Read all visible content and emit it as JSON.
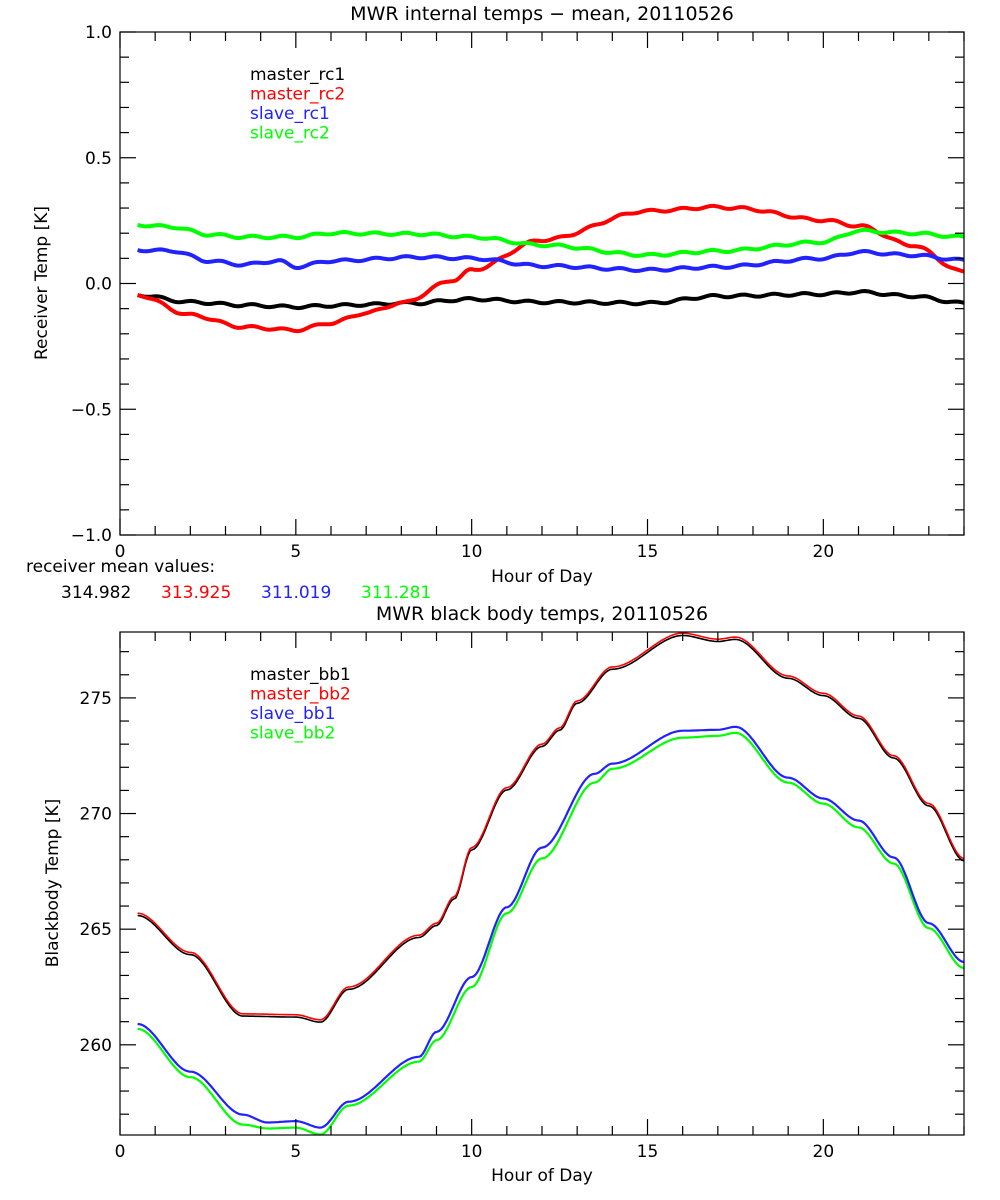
{
  "chart_data": [
    {
      "type": "line",
      "title": "MWR internal temps − mean, 20110526",
      "xlabel": "Hour of Day",
      "ylabel": "Receiver Temp [K]",
      "xlim": [
        0,
        24
      ],
      "ylim": [
        -1.0,
        1.0
      ],
      "xticks": [
        0,
        5,
        10,
        15,
        20
      ],
      "xtick_labels": [
        "0",
        "5",
        "10",
        "15",
        "20"
      ],
      "yticks": [
        -1.0,
        -0.5,
        0.0,
        0.5,
        1.0
      ],
      "ytick_labels": [
        "−1.0",
        "−0.5",
        "0.0",
        "0.5",
        "1.0"
      ],
      "grid": false,
      "legend_position": "top-left",
      "series": [
        {
          "name": "master_rc1",
          "color": "#000000",
          "x": [
            0.5,
            2,
            3.5,
            5,
            6,
            7,
            8,
            8.5,
            9.5,
            10,
            12,
            15,
            17,
            20,
            21,
            22.5,
            24
          ],
          "y": [
            -0.046,
            -0.074,
            -0.086,
            -0.093,
            -0.088,
            -0.084,
            -0.078,
            -0.078,
            -0.066,
            -0.062,
            -0.074,
            -0.078,
            -0.05,
            -0.042,
            -0.034,
            -0.05,
            -0.078
          ]
        },
        {
          "name": "master_rc2",
          "color": "#ff0000",
          "x": [
            0.5,
            2,
            3.5,
            5,
            6,
            7,
            8,
            9.5,
            10,
            12,
            15,
            17,
            17.5,
            20,
            21,
            22.5,
            24
          ],
          "y": [
            -0.046,
            -0.125,
            -0.173,
            -0.185,
            -0.157,
            -0.117,
            -0.078,
            0.014,
            0.054,
            0.173,
            0.288,
            0.304,
            0.3,
            0.252,
            0.229,
            0.153,
            0.046
          ]
        },
        {
          "name": "slave_rc1",
          "color": "#2222ff",
          "x": [
            0.5,
            1.5,
            2.5,
            3.5,
            4.5,
            5,
            6,
            8.5,
            10,
            12,
            15,
            17,
            20,
            21,
            22.5,
            24
          ],
          "y": [
            0.133,
            0.13,
            0.09,
            0.075,
            0.09,
            0.066,
            0.09,
            0.105,
            0.1,
            0.07,
            0.054,
            0.066,
            0.1,
            0.125,
            0.113,
            0.093
          ]
        },
        {
          "name": "slave_rc2",
          "color": "#00ff00",
          "x": [
            0.5,
            1.5,
            2.5,
            3.5,
            5,
            6,
            8.5,
            10,
            12,
            15,
            17,
            20,
            21,
            22.5,
            24
          ],
          "y": [
            0.233,
            0.225,
            0.195,
            0.185,
            0.185,
            0.2,
            0.197,
            0.185,
            0.153,
            0.113,
            0.129,
            0.165,
            0.209,
            0.2,
            0.185
          ]
        }
      ],
      "annotation": {
        "label": "receiver mean values:",
        "values": [
          {
            "text": "314.982",
            "color": "#000000"
          },
          {
            "text": "313.925",
            "color": "#ff0000"
          },
          {
            "text": "311.019",
            "color": "#2222ff"
          },
          {
            "text": "311.281",
            "color": "#00ff00"
          }
        ]
      }
    },
    {
      "type": "line",
      "title": "MWR black body temps, 20110526",
      "xlabel": "Hour of Day",
      "ylabel": "Blackbody Temp [K]",
      "xlim": [
        0,
        24
      ],
      "ylim": [
        256.1,
        277.85
      ],
      "xticks": [
        0,
        5,
        10,
        15,
        20
      ],
      "xtick_labels": [
        "0",
        "5",
        "10",
        "15",
        "20"
      ],
      "yticks": [
        260,
        265,
        270,
        275
      ],
      "ytick_labels": [
        "260",
        "265",
        "270",
        "275"
      ],
      "grid": false,
      "legend_position": "top-left",
      "series": [
        {
          "name": "master_bb1",
          "color": "#000000",
          "x": [
            0.5,
            2,
            3.5,
            5,
            5.7,
            6.5,
            8.5,
            9,
            9.5,
            10,
            11,
            12,
            12.5,
            13,
            14,
            16,
            17,
            17.5,
            19,
            20,
            21,
            22,
            23,
            24
          ],
          "y": [
            265.59,
            263.9,
            261.24,
            261.2,
            260.98,
            262.4,
            264.64,
            265.16,
            266.3,
            268.43,
            271.02,
            272.9,
            273.6,
            274.77,
            276.24,
            277.7,
            277.44,
            277.53,
            275.85,
            275.1,
            274.12,
            272.4,
            270.33,
            267.96
          ]
        },
        {
          "name": "master_bb2",
          "color": "#ff0000",
          "x": [
            0.5,
            2,
            3.5,
            5,
            5.7,
            6.5,
            8.5,
            9,
            9.5,
            10,
            11,
            12,
            12.5,
            13,
            14,
            16,
            17,
            17.5,
            19,
            20,
            21,
            22,
            23,
            24
          ],
          "y": [
            265.69,
            264.0,
            261.34,
            261.3,
            261.08,
            262.5,
            264.74,
            265.26,
            266.4,
            268.53,
            271.12,
            273.0,
            273.7,
            274.87,
            276.34,
            277.8,
            277.54,
            277.63,
            275.95,
            275.2,
            274.22,
            272.5,
            270.43,
            268.06
          ]
        },
        {
          "name": "slave_bb1",
          "color": "#2222ff",
          "x": [
            0.5,
            2,
            3.5,
            4.2,
            5,
            5.7,
            6.5,
            8.5,
            9,
            10,
            11,
            12,
            13.5,
            14,
            16,
            17,
            17.5,
            19,
            20,
            21,
            22,
            23,
            24
          ],
          "y": [
            260.9,
            258.84,
            256.98,
            256.64,
            256.7,
            256.42,
            257.54,
            259.48,
            260.56,
            262.93,
            265.95,
            268.53,
            271.72,
            272.16,
            273.58,
            273.62,
            273.75,
            271.55,
            270.65,
            269.7,
            268.1,
            265.26,
            263.58
          ]
        },
        {
          "name": "slave_bb2",
          "color": "#00ff00",
          "x": [
            0.5,
            2,
            3.5,
            4.2,
            5,
            5.7,
            6.5,
            8.5,
            9,
            10,
            11,
            12,
            13.5,
            14,
            16,
            17,
            17.5,
            19,
            20,
            21,
            22,
            23,
            24
          ],
          "y": [
            260.69,
            258.6,
            256.55,
            256.38,
            256.42,
            256.12,
            257.37,
            259.27,
            260.2,
            262.5,
            265.69,
            268.06,
            271.34,
            271.94,
            273.28,
            273.36,
            273.49,
            271.34,
            270.43,
            269.4,
            267.84,
            265.04,
            263.32
          ]
        }
      ]
    }
  ]
}
